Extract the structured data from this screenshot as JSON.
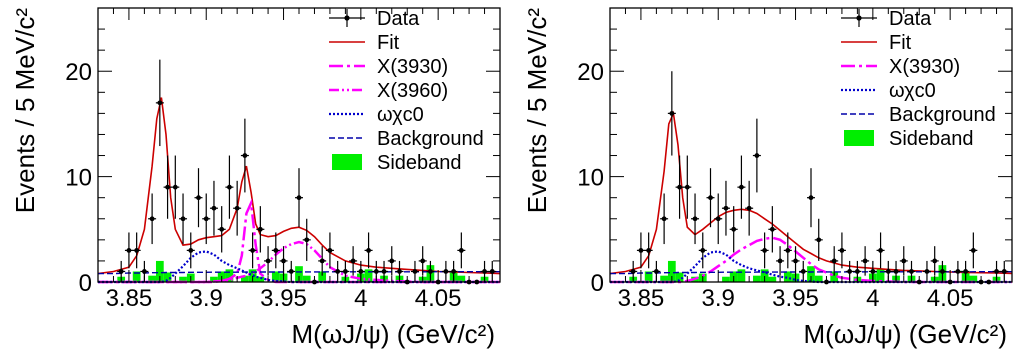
{
  "colors": {
    "data": "#000000",
    "fit": "#cc0000",
    "x3930": "#ff00ff",
    "x3960": "#ff00ff",
    "omega_chic0": "#0000cc",
    "background": "#0000aa",
    "sideband": "#00ee00"
  },
  "chart_data": [
    {
      "type": "line",
      "xlabel": "M(ωJ/ψ) (GeV/c²)",
      "ylabel": "Events / 5 MeV/c²",
      "xlim": [
        3.83,
        4.09
      ],
      "ylim": [
        0,
        26
      ],
      "xticks": [
        "3.85",
        "3.9",
        "3.95",
        "4",
        "4.05"
      ],
      "xtick_values": [
        3.85,
        3.9,
        3.95,
        4.0,
        4.05
      ],
      "yticks": [
        "0",
        "10",
        "20"
      ],
      "ytick_values": [
        0,
        10,
        20
      ],
      "legend": {
        "placement": "top-right",
        "entries": [
          {
            "key": "data",
            "label": "Data",
            "style": "marker"
          },
          {
            "key": "fit",
            "label": "Fit",
            "style": "solid"
          },
          {
            "key": "x3930",
            "label": "X(3930)",
            "style": "dashdot"
          },
          {
            "key": "x3960",
            "label": "X(3960)",
            "style": "dashdotdot"
          },
          {
            "key": "omega_chic0",
            "label": "ωχc0",
            "style": "dotted"
          },
          {
            "key": "background",
            "label": "Background",
            "style": "dashed"
          },
          {
            "key": "sideband",
            "label": "Sideband",
            "style": "box"
          }
        ]
      },
      "data_points": {
        "x": [
          3.845,
          3.85,
          3.855,
          3.86,
          3.865,
          3.87,
          3.875,
          3.88,
          3.885,
          3.89,
          3.895,
          3.9,
          3.905,
          3.91,
          3.915,
          3.92,
          3.925,
          3.93,
          3.935,
          3.94,
          3.945,
          3.95,
          3.955,
          3.96,
          3.965,
          3.97,
          3.975,
          3.98,
          3.985,
          3.99,
          3.995,
          4.0,
          4.005,
          4.01,
          4.015,
          4.02,
          4.025,
          4.03,
          4.035,
          4.04,
          4.045,
          4.05,
          4.055,
          4.06,
          4.065,
          4.07,
          4.075,
          4.08,
          4.085
        ],
        "y": [
          1,
          3,
          3,
          1,
          6,
          17,
          9,
          9,
          6,
          3,
          8,
          6,
          7,
          5,
          9,
          7,
          12,
          3,
          5,
          2,
          3,
          2,
          1,
          8,
          4,
          0,
          2,
          3,
          1,
          1,
          2,
          1,
          3,
          1,
          1,
          2,
          1,
          0,
          1,
          2,
          1,
          0,
          1,
          1,
          3,
          0,
          0,
          1,
          1
        ],
        "yerr": [
          1.0,
          1.7,
          1.7,
          1.0,
          2.4,
          4.1,
          3.0,
          3.0,
          2.4,
          1.7,
          2.8,
          2.4,
          2.6,
          2.2,
          3.0,
          2.6,
          3.5,
          1.7,
          2.2,
          1.4,
          1.7,
          1.4,
          1.0,
          2.8,
          2.0,
          0.0,
          1.4,
          1.7,
          1.0,
          1.0,
          1.4,
          1.0,
          1.7,
          1.0,
          1.0,
          1.4,
          1.0,
          0.0,
          1.0,
          1.4,
          1.0,
          0.0,
          1.0,
          1.0,
          1.7,
          0.0,
          0.0,
          1.0,
          1.0
        ]
      },
      "curves_x": [
        3.83,
        3.84,
        3.85,
        3.855,
        3.86,
        3.865,
        3.868,
        3.871,
        3.874,
        3.877,
        3.88,
        3.885,
        3.89,
        3.895,
        3.9,
        3.905,
        3.91,
        3.915,
        3.92,
        3.923,
        3.926,
        3.929,
        3.932,
        3.935,
        3.94,
        3.945,
        3.95,
        3.955,
        3.96,
        3.965,
        3.97,
        3.975,
        3.98,
        3.99,
        4.0,
        4.01,
        4.02,
        4.03,
        4.04,
        4.05,
        4.06,
        4.07,
        4.08,
        4.09
      ],
      "series": [
        {
          "key": "fit",
          "values": [
            0.8,
            1.0,
            1.4,
            2.5,
            5.0,
            11.0,
            15.5,
            17.5,
            14.0,
            8.0,
            5.0,
            3.5,
            3.6,
            4.0,
            4.2,
            4.3,
            4.4,
            5.0,
            7.0,
            9.5,
            11.0,
            8.5,
            5.5,
            4.5,
            4.3,
            4.4,
            4.8,
            5.1,
            5.2,
            4.9,
            4.3,
            3.5,
            2.8,
            2.0,
            1.6,
            1.4,
            1.3,
            1.2,
            1.1,
            1.0,
            0.95,
            0.9,
            0.85,
            0.8
          ]
        },
        {
          "key": "x3930",
          "values": [
            0,
            0,
            0,
            0,
            0,
            0,
            0,
            0,
            0,
            0,
            0,
            0,
            0,
            0,
            0,
            0,
            0.1,
            0.3,
            0.8,
            2.5,
            6.5,
            7.5,
            3.5,
            0.8,
            0.2,
            0,
            0,
            0,
            0,
            0,
            0,
            0,
            0,
            0,
            0,
            0,
            0,
            0,
            0,
            0,
            0,
            0,
            0,
            0
          ]
        },
        {
          "key": "x3960",
          "values": [
            0,
            0,
            0,
            0,
            0,
            0,
            0,
            0,
            0,
            0,
            0,
            0,
            0,
            0,
            0,
            0.05,
            0.1,
            0.2,
            0.4,
            0.5,
            0.6,
            0.8,
            1.0,
            1.3,
            1.9,
            2.6,
            3.2,
            3.6,
            3.8,
            3.6,
            3.0,
            2.2,
            1.4,
            0.6,
            0.3,
            0.2,
            0.1,
            0.05,
            0,
            0,
            0,
            0,
            0,
            0
          ]
        },
        {
          "key": "omega_chic0",
          "values": [
            0,
            0,
            0,
            0,
            0,
            0,
            0,
            0,
            0.1,
            0.4,
            0.8,
            1.5,
            2.3,
            2.8,
            2.9,
            2.6,
            2.0,
            1.6,
            1.3,
            1.1,
            0.9,
            0.7,
            0.5,
            0.4,
            0.2,
            0.1,
            0.05,
            0,
            0,
            0,
            0,
            0,
            0,
            0,
            0,
            0,
            0,
            0,
            0,
            0,
            0,
            0,
            0,
            0
          ]
        },
        {
          "key": "background",
          "values": [
            0.8,
            0.8,
            0.85,
            0.85,
            0.85,
            0.88,
            0.88,
            0.88,
            0.9,
            0.9,
            0.9,
            0.9,
            0.92,
            0.92,
            0.92,
            0.93,
            0.93,
            0.93,
            0.93,
            0.94,
            0.94,
            0.94,
            0.94,
            0.95,
            0.95,
            0.95,
            0.95,
            0.96,
            0.96,
            0.96,
            0.96,
            0.96,
            0.97,
            0.97,
            0.97,
            0.97,
            0.97,
            0.97,
            0.97,
            0.98,
            0.98,
            0.98,
            0.98,
            0.98
          ]
        }
      ],
      "sideband": {
        "x": [
          3.845,
          3.855,
          3.865,
          3.87,
          3.875,
          3.885,
          3.89,
          3.905,
          3.91,
          3.915,
          3.925,
          3.93,
          3.935,
          3.945,
          3.95,
          3.96,
          3.965,
          3.975,
          3.99,
          4.0,
          4.005,
          4.015,
          4.025,
          4.04,
          4.045,
          4.06,
          4.065,
          4.08
        ],
        "y": [
          0.5,
          1.0,
          0.6,
          2.0,
          0.9,
          0.5,
          0.8,
          0.5,
          1.0,
          1.2,
          0.6,
          1.2,
          0.5,
          1.0,
          0.8,
          1.5,
          0.6,
          1.0,
          0.5,
          0.8,
          1.2,
          0.6,
          0.6,
          0.5,
          1.6,
          1.0,
          0.6,
          0.5
        ]
      }
    },
    {
      "type": "line",
      "xlabel": "M(ωJ/ψ) (GeV/c²)",
      "ylabel": "Events / 5 MeV/c²",
      "xlim": [
        3.83,
        4.09
      ],
      "ylim": [
        0,
        26
      ],
      "xticks": [
        "3.85",
        "3.9",
        "3.95",
        "4",
        "4.05"
      ],
      "xtick_values": [
        3.85,
        3.9,
        3.95,
        4.0,
        4.05
      ],
      "yticks": [
        "0",
        "10",
        "20"
      ],
      "ytick_values": [
        0,
        10,
        20
      ],
      "legend": {
        "placement": "top-right",
        "entries": [
          {
            "key": "data",
            "label": "Data",
            "style": "marker"
          },
          {
            "key": "fit",
            "label": "Fit",
            "style": "solid"
          },
          {
            "key": "x3930",
            "label": "X(3930)",
            "style": "dashdot"
          },
          {
            "key": "omega_chic0",
            "label": "ωχc0",
            "style": "dotted"
          },
          {
            "key": "background",
            "label": "Background",
            "style": "dashed"
          },
          {
            "key": "sideband",
            "label": "Sideband",
            "style": "box"
          }
        ]
      },
      "data_points": {
        "x": [
          3.845,
          3.85,
          3.855,
          3.86,
          3.865,
          3.87,
          3.875,
          3.88,
          3.885,
          3.89,
          3.895,
          3.9,
          3.905,
          3.91,
          3.915,
          3.92,
          3.925,
          3.93,
          3.935,
          3.94,
          3.945,
          3.95,
          3.955,
          3.96,
          3.965,
          3.97,
          3.975,
          3.98,
          3.985,
          3.99,
          3.995,
          4.0,
          4.005,
          4.01,
          4.015,
          4.02,
          4.025,
          4.03,
          4.035,
          4.04,
          4.045,
          4.05,
          4.055,
          4.06,
          4.065,
          4.07,
          4.075,
          4.08,
          4.085
        ],
        "y": [
          1,
          3,
          3,
          1,
          6,
          16,
          9,
          9,
          6,
          3,
          8,
          6,
          7,
          5,
          9,
          7,
          12,
          3,
          5,
          2,
          3,
          2,
          1,
          8,
          4,
          0,
          2,
          3,
          1,
          1,
          2,
          1,
          3,
          1,
          1,
          2,
          1,
          0,
          1,
          2,
          1,
          0,
          1,
          1,
          3,
          0,
          0,
          1,
          1
        ],
        "yerr": [
          1.0,
          1.7,
          1.7,
          1.0,
          2.4,
          4.0,
          3.0,
          3.0,
          2.4,
          1.7,
          2.8,
          2.4,
          2.6,
          2.2,
          3.0,
          2.6,
          3.5,
          1.7,
          2.2,
          1.4,
          1.7,
          1.4,
          1.0,
          2.8,
          2.0,
          0.0,
          1.4,
          1.7,
          1.0,
          1.0,
          1.4,
          1.0,
          1.7,
          1.0,
          1.0,
          1.4,
          1.0,
          0.0,
          1.0,
          1.4,
          1.0,
          0.0,
          1.0,
          1.0,
          1.7,
          0.0,
          0.0,
          1.0,
          1.0
        ]
      },
      "curves_x": [
        3.83,
        3.84,
        3.85,
        3.855,
        3.86,
        3.865,
        3.868,
        3.871,
        3.874,
        3.877,
        3.88,
        3.885,
        3.89,
        3.895,
        3.9,
        3.905,
        3.91,
        3.915,
        3.92,
        3.925,
        3.93,
        3.935,
        3.94,
        3.945,
        3.95,
        3.955,
        3.96,
        3.965,
        3.97,
        3.975,
        3.98,
        3.99,
        4.0,
        4.01,
        4.02,
        4.03,
        4.04,
        4.05,
        4.06,
        4.07,
        4.08,
        4.09
      ],
      "series": [
        {
          "key": "fit",
          "values": [
            0.8,
            1.0,
            1.4,
            2.5,
            5.0,
            10.5,
            15.0,
            16.0,
            13.0,
            8.0,
            5.2,
            4.5,
            5.0,
            5.6,
            6.2,
            6.6,
            6.8,
            6.9,
            6.8,
            6.5,
            6.0,
            5.5,
            4.9,
            4.3,
            3.7,
            3.1,
            2.7,
            2.3,
            2.0,
            1.8,
            1.6,
            1.4,
            1.3,
            1.2,
            1.1,
            1.05,
            1.0,
            0.95,
            0.9,
            0.88,
            0.85,
            0.82
          ]
        },
        {
          "key": "x3930",
          "values": [
            0,
            0,
            0,
            0,
            0,
            0,
            0,
            0,
            0,
            0,
            0.1,
            0.3,
            0.6,
            1.0,
            1.5,
            2.0,
            2.6,
            3.1,
            3.5,
            3.9,
            4.1,
            4.2,
            4.0,
            3.5,
            2.9,
            2.3,
            1.7,
            1.2,
            0.9,
            0.6,
            0.4,
            0.2,
            0.1,
            0.05,
            0,
            0,
            0,
            0,
            0,
            0,
            0,
            0
          ]
        },
        {
          "key": "omega_chic0",
          "values": [
            0,
            0,
            0,
            0,
            0,
            0,
            0,
            0,
            0.1,
            0.4,
            0.8,
            1.5,
            2.3,
            2.8,
            2.9,
            2.6,
            2.0,
            1.6,
            1.3,
            1.1,
            0.9,
            0.7,
            0.5,
            0.4,
            0.2,
            0.1,
            0.05,
            0,
            0,
            0,
            0,
            0,
            0,
            0,
            0,
            0,
            0,
            0,
            0,
            0,
            0,
            0
          ]
        },
        {
          "key": "background",
          "values": [
            0.8,
            0.8,
            0.85,
            0.85,
            0.85,
            0.88,
            0.88,
            0.88,
            0.9,
            0.9,
            0.9,
            0.9,
            0.92,
            0.92,
            0.92,
            0.93,
            0.93,
            0.93,
            0.93,
            0.94,
            0.94,
            0.94,
            0.94,
            0.95,
            0.95,
            0.95,
            0.95,
            0.96,
            0.96,
            0.96,
            0.96,
            0.96,
            0.97,
            0.97,
            0.97,
            0.97,
            0.97,
            0.97,
            0.97,
            0.98,
            0.98,
            0.98
          ]
        }
      ],
      "sideband": {
        "x": [
          3.845,
          3.855,
          3.865,
          3.87,
          3.875,
          3.885,
          3.89,
          3.905,
          3.91,
          3.915,
          3.925,
          3.93,
          3.935,
          3.945,
          3.95,
          3.96,
          3.965,
          3.975,
          3.99,
          4.0,
          4.005,
          4.015,
          4.025,
          4.04,
          4.045,
          4.06,
          4.065,
          4.08
        ],
        "y": [
          0.5,
          1.0,
          0.6,
          2.0,
          0.9,
          0.5,
          0.8,
          0.5,
          1.0,
          1.2,
          0.6,
          1.2,
          0.5,
          1.0,
          0.8,
          1.5,
          0.6,
          1.0,
          0.5,
          0.8,
          1.2,
          0.6,
          0.6,
          0.5,
          1.6,
          1.0,
          0.6,
          0.5
        ]
      }
    }
  ]
}
